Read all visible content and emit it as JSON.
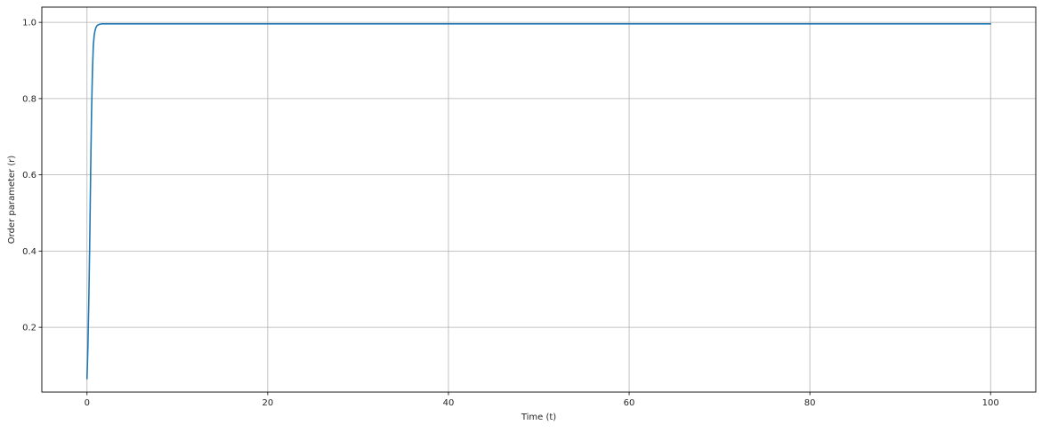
{
  "chart_data": {
    "type": "line",
    "title": "",
    "xlabel": "Time (t)",
    "ylabel": "Order parameter (r)",
    "xlim": [
      -5,
      105
    ],
    "ylim": [
      0.03,
      1.04
    ],
    "xticks": [
      0,
      20,
      40,
      60,
      80,
      100
    ],
    "yticks": [
      0.2,
      0.4,
      0.6,
      0.8,
      1.0
    ],
    "xtick_labels": [
      "0",
      "20",
      "40",
      "60",
      "80",
      "100"
    ],
    "ytick_labels": [
      "0.2",
      "0.4",
      "0.6",
      "0.8",
      "1.0"
    ],
    "grid": true,
    "series": [
      {
        "color": "#1f77b4",
        "x": [
          0,
          0.1,
          0.2,
          0.3,
          0.4,
          0.5,
          0.6,
          0.7,
          0.8,
          0.9,
          1.0,
          1.1,
          1.2,
          1.4,
          1.6,
          2.0,
          3.0,
          5.0,
          10,
          20,
          30,
          40,
          50,
          60,
          70,
          80,
          90,
          100
        ],
        "y": [
          0.065,
          0.15,
          0.27,
          0.42,
          0.6,
          0.76,
          0.87,
          0.94,
          0.967,
          0.98,
          0.987,
          0.991,
          0.993,
          0.995,
          0.996,
          0.996,
          0.996,
          0.996,
          0.996,
          0.996,
          0.996,
          0.996,
          0.996,
          0.996,
          0.996,
          0.996,
          0.996,
          0.996
        ]
      }
    ]
  }
}
